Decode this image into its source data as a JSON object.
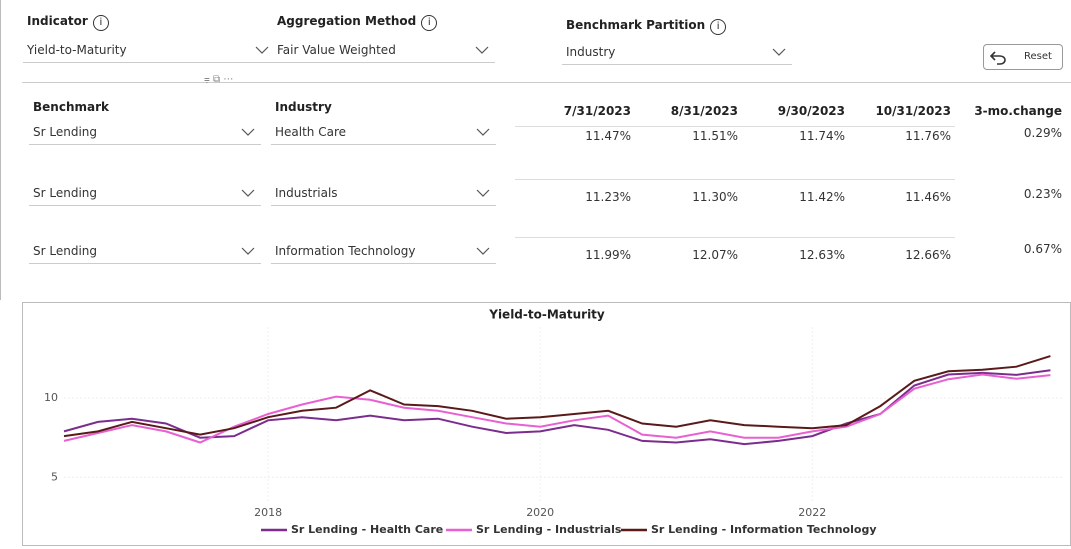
{
  "filters": [
    {
      "label": "Indicator",
      "value": "Yield-to-Maturity"
    },
    {
      "label": "Aggregation Method",
      "value": "Fair Value Weighted"
    },
    {
      "label": "Benchmark Partition",
      "value": "Industry"
    }
  ],
  "reset": "Reset",
  "table": {
    "columns": [
      "Benchmark",
      "Industry",
      "7/31/2023",
      "8/31/2023",
      "9/30/2023",
      "10/31/2023",
      "3-mo.change"
    ],
    "rows": [
      [
        "Sr Lending",
        "Health Care",
        "11.47%",
        "11.51%",
        "11.74%",
        "11.76%",
        "0.29%"
      ],
      [
        "Sr Lending",
        "Industrials",
        "11.23%",
        "11.30%",
        "11.42%",
        "11.46%",
        "0.23%"
      ],
      [
        "Sr Lending",
        "Information Technology",
        "11.99%",
        "12.07%",
        "12.63%",
        "12.66%",
        "0.67%"
      ]
    ]
  },
  "chart_data": {
    "type": "line",
    "title": "Yield-to-Maturity",
    "x": [
      2016.5,
      2016.75,
      2017,
      2017.25,
      2017.5,
      2017.75,
      2018,
      2018.25,
      2018.5,
      2018.75,
      2019,
      2019.25,
      2019.5,
      2019.75,
      2020,
      2020.25,
      2020.5,
      2020.75,
      2021,
      2021.25,
      2021.5,
      2021.75,
      2022,
      2022.25,
      2022.5,
      2022.75,
      2023,
      2023.25,
      2023.5,
      2023.75
    ],
    "series": [
      {
        "name": "Sr Lending - Health Care",
        "color": "#7b2d8e",
        "values": [
          7.9,
          8.5,
          8.7,
          8.4,
          7.5,
          7.6,
          8.6,
          8.8,
          8.6,
          8.9,
          8.6,
          8.7,
          8.2,
          7.8,
          7.9,
          8.3,
          8.0,
          7.3,
          7.2,
          7.4,
          7.1,
          7.3,
          7.6,
          8.4,
          9.0,
          10.8,
          11.5,
          11.6,
          11.47,
          11.76
        ]
      },
      {
        "name": "Sr Lending - Industrials",
        "color": "#e860d2",
        "values": [
          7.3,
          7.8,
          8.3,
          7.9,
          7.2,
          8.2,
          9.0,
          9.6,
          10.1,
          9.9,
          9.4,
          9.2,
          8.8,
          8.4,
          8.2,
          8.6,
          8.9,
          7.7,
          7.5,
          7.9,
          7.5,
          7.5,
          7.9,
          8.2,
          9.0,
          10.6,
          11.2,
          11.5,
          11.23,
          11.46
        ]
      },
      {
        "name": "Sr Lending - Information Technology",
        "color": "#5a1a1a",
        "values": [
          7.6,
          7.9,
          8.5,
          8.1,
          7.7,
          8.1,
          8.8,
          9.2,
          9.4,
          10.5,
          9.6,
          9.5,
          9.2,
          8.7,
          8.8,
          9.0,
          9.2,
          8.4,
          8.2,
          8.6,
          8.3,
          8.2,
          8.1,
          8.3,
          9.5,
          11.1,
          11.7,
          11.8,
          11.99,
          12.66
        ]
      }
    ],
    "xlim": [
      2016.5,
      2023.85
    ],
    "xticks": [
      2018,
      2020,
      2022
    ],
    "ylim": [
      3.5,
      14.5
    ],
    "yticks": [
      5,
      10
    ],
    "grid": true,
    "legend": "bottom"
  }
}
